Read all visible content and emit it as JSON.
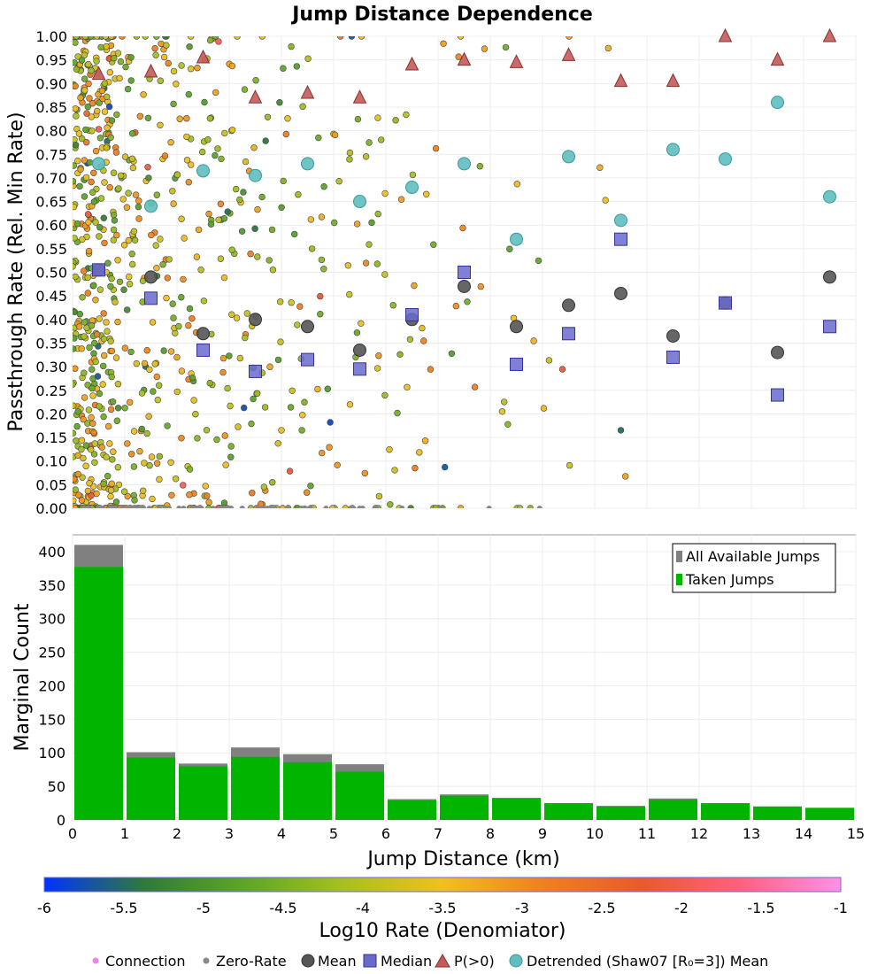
{
  "title": "Jump Distance Dependence",
  "colors": {
    "mean": "#555555",
    "median": "#6a6acc",
    "p_gt_0": "#c45a5a",
    "detrended": "#5fbfbf",
    "all_jumps": "#808080",
    "taken_jumps": "#00b400",
    "connection": "#ee82ee",
    "zero_rate": "#888888"
  },
  "chart_data": [
    {
      "type": "scatter",
      "name": "passthrough-rate",
      "title": "Jump Distance Dependence",
      "xlabel": "",
      "ylabel": "Passthrough Rate (Rel. Min Rate)",
      "xlim": [
        0,
        15
      ],
      "ylim": [
        0,
        1
      ],
      "yticks": [
        "0.00",
        "0.05",
        "0.10",
        "0.15",
        "0.20",
        "0.25",
        "0.30",
        "0.35",
        "0.40",
        "0.45",
        "0.50",
        "0.55",
        "0.60",
        "0.65",
        "0.70",
        "0.75",
        "0.80",
        "0.85",
        "0.90",
        "0.95",
        "1.00"
      ],
      "grid": true,
      "bin_x": [
        0.5,
        1.5,
        2.5,
        3.5,
        4.5,
        5.5,
        6.5,
        7.5,
        8.5,
        9.5,
        10.5,
        11.5,
        12.5,
        13.5,
        14.5
      ],
      "series": [
        {
          "name": "Mean",
          "values": [
            0.505,
            0.49,
            0.37,
            0.4,
            0.385,
            0.335,
            0.4,
            0.47,
            0.385,
            0.43,
            0.455,
            0.365,
            0.435,
            0.33,
            0.49
          ]
        },
        {
          "name": "Median",
          "values": [
            0.505,
            0.445,
            0.335,
            0.29,
            0.315,
            0.295,
            0.41,
            0.5,
            0.305,
            0.37,
            0.57,
            0.32,
            0.435,
            0.24,
            0.385
          ]
        },
        {
          "name": "P(>0)",
          "values": [
            0.92,
            0.925,
            0.955,
            0.87,
            0.88,
            0.87,
            0.94,
            0.95,
            0.945,
            0.96,
            0.905,
            0.905,
            1.0,
            0.95,
            1.0
          ]
        },
        {
          "name": "Detrended (Shaw07 [R₀=3]) Mean",
          "values": [
            0.73,
            0.64,
            0.715,
            0.705,
            0.73,
            0.65,
            0.68,
            0.73,
            0.57,
            0.745,
            0.61,
            0.76,
            0.74,
            0.86,
            0.66
          ]
        }
      ],
      "connection_note": "Hundreds of individual connection points colored by Log10 Rate"
    },
    {
      "type": "bar",
      "name": "marginal-count",
      "xlabel": "Jump Distance (km)",
      "ylabel": "Marginal Count",
      "xlim": [
        0,
        15
      ],
      "ylim": [
        0,
        425
      ],
      "xticks": [
        "0",
        "1",
        "2",
        "3",
        "4",
        "5",
        "6",
        "7",
        "8",
        "9",
        "10",
        "11",
        "12",
        "13",
        "14",
        "15"
      ],
      "yticks": [
        "0",
        "50",
        "100",
        "150",
        "200",
        "250",
        "300",
        "350",
        "400"
      ],
      "categories": [
        "0-1",
        "1-2",
        "2-3",
        "3-4",
        "4-5",
        "5-6",
        "6-7",
        "7-8",
        "8-9",
        "9-10",
        "10-11",
        "11-12",
        "12-13",
        "13-14",
        "14-15"
      ],
      "series": [
        {
          "name": "All Available Jumps",
          "values": [
            410,
            101,
            84,
            108,
            98,
            83,
            31,
            38,
            33,
            25,
            21,
            32,
            25,
            20,
            18
          ]
        },
        {
          "name": "Taken Jumps",
          "values": [
            377,
            93,
            80,
            94,
            86,
            72,
            29,
            36,
            32,
            25,
            20,
            30,
            25,
            20,
            18
          ]
        }
      ],
      "legend": [
        "All Available Jumps",
        "Taken Jumps"
      ],
      "legend_position": "top-right"
    },
    {
      "type": "colorbar",
      "name": "log10-rate-colorbar",
      "label": "Log10 Rate (Denomiator)",
      "range": [
        -6,
        -1
      ],
      "ticks": [
        "-6",
        "-5.5",
        "-5",
        "-4.5",
        "-4",
        "-3.5",
        "-3",
        "-2.5",
        "-2",
        "-1.5",
        "-1"
      ],
      "stops": [
        "#0033ff",
        "#2f7a3a",
        "#5ca52a",
        "#a6c020",
        "#f0c020",
        "#f08020",
        "#e85a30",
        "#ff6080",
        "#ff90e8"
      ]
    }
  ],
  "legend": {
    "items": [
      {
        "symbol": "connection",
        "label": "Connection"
      },
      {
        "symbol": "zero-rate",
        "label": "Zero-Rate"
      },
      {
        "symbol": "mean",
        "label": "Mean"
      },
      {
        "symbol": "median",
        "label": "Median"
      },
      {
        "symbol": "p-gt-0",
        "label": "P(>0)"
      },
      {
        "symbol": "detrended",
        "label": "Detrended (Shaw07 [R₀=3]) Mean"
      }
    ]
  }
}
